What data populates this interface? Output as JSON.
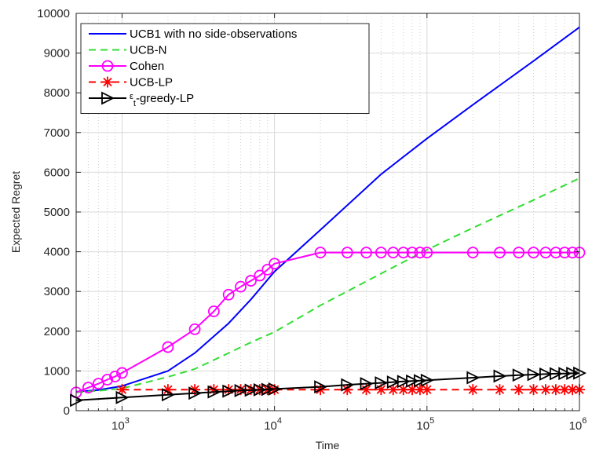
{
  "chart_data": {
    "type": "line",
    "xlabel": "Time",
    "ylabel": "Expected Regret",
    "x_scale": "log",
    "xlim": [
      500,
      1000000
    ],
    "ylim": [
      0,
      10000
    ],
    "grid": true,
    "legend_position": "top-left",
    "x_ticks": [
      {
        "value": 1000,
        "base": "10",
        "exp": "3"
      },
      {
        "value": 10000,
        "base": "10",
        "exp": "4"
      },
      {
        "value": 100000,
        "base": "10",
        "exp": "5"
      },
      {
        "value": 1000000,
        "base": "10",
        "exp": "6"
      }
    ],
    "y_ticks": [
      0,
      1000,
      2000,
      3000,
      4000,
      5000,
      6000,
      7000,
      8000,
      9000,
      10000
    ],
    "series": [
      {
        "name": "UCB1 with no side-observations",
        "legend": {
          "pre": "",
          "sym": "",
          "sub": "",
          "post": "UCB1 with no side-observations"
        },
        "color": "#0000ff",
        "dash": "",
        "marker": "none",
        "x": [
          500,
          700,
          1000,
          2000,
          3000,
          5000,
          7000,
          10000,
          20000,
          50000,
          100000,
          200000,
          500000,
          1000000
        ],
        "y": [
          480,
          520,
          620,
          1000,
          1450,
          2200,
          2800,
          3500,
          4550,
          5950,
          6850,
          7700,
          8800,
          9650
        ]
      },
      {
        "name": "UCB-N",
        "legend": {
          "pre": "",
          "sym": "",
          "sub": "",
          "post": "UCB-N"
        },
        "color": "#33dd33",
        "dash": "9,6",
        "marker": "none",
        "x": [
          500,
          700,
          1000,
          2000,
          3000,
          5000,
          7000,
          10000,
          20000,
          50000,
          100000,
          200000,
          500000,
          1000000
        ],
        "y": [
          460,
          500,
          560,
          850,
          1050,
          1450,
          1720,
          1980,
          2650,
          3450,
          4050,
          4600,
          5300,
          5850
        ]
      },
      {
        "name": "Cohen",
        "legend": {
          "pre": "",
          "sym": "",
          "sub": "",
          "post": "Cohen"
        },
        "color": "#ff00ff",
        "dash": "",
        "marker": "circle",
        "x": [
          500,
          600,
          700,
          800,
          900,
          1000,
          2000,
          3000,
          4000,
          5000,
          6000,
          7000,
          8000,
          9000,
          10000,
          20000,
          30000,
          40000,
          50000,
          60000,
          70000,
          80000,
          90000,
          100000,
          200000,
          300000,
          400000,
          500000,
          600000,
          700000,
          800000,
          900000,
          1000000
        ],
        "y": [
          460,
          580,
          680,
          780,
          860,
          950,
          1600,
          2050,
          2500,
          2920,
          3120,
          3270,
          3400,
          3550,
          3700,
          3980,
          3980,
          3980,
          3980,
          3980,
          3980,
          3980,
          3980,
          3980,
          3980,
          3980,
          3980,
          3980,
          3980,
          3980,
          3980,
          3980,
          3980
        ]
      },
      {
        "name": "UCB-LP",
        "legend": {
          "pre": "",
          "sym": "",
          "sub": "",
          "post": "UCB-LP"
        },
        "color": "#ff0000",
        "dash": "9,6",
        "marker": "asterisk",
        "x": [
          1000,
          2000,
          3000,
          4000,
          5000,
          6000,
          7000,
          8000,
          9000,
          10000,
          20000,
          30000,
          40000,
          50000,
          60000,
          70000,
          80000,
          90000,
          100000,
          200000,
          300000,
          400000,
          500000,
          600000,
          700000,
          800000,
          900000,
          1000000
        ],
        "y": [
          530,
          530,
          530,
          530,
          530,
          530,
          530,
          530,
          530,
          530,
          530,
          530,
          530,
          530,
          530,
          530,
          530,
          530,
          530,
          530,
          530,
          530,
          530,
          530,
          530,
          530,
          530,
          530
        ]
      },
      {
        "name": "ε_t-greedy-LP",
        "legend": {
          "pre": "",
          "sym": "ε",
          "sub": "t",
          "post": "-greedy-LP"
        },
        "color": "#000000",
        "dash": "",
        "marker": "triangle-right",
        "x": [
          500,
          1000,
          2000,
          3000,
          4000,
          5000,
          6000,
          7000,
          8000,
          9000,
          10000,
          20000,
          30000,
          40000,
          50000,
          60000,
          70000,
          80000,
          90000,
          100000,
          200000,
          300000,
          400000,
          500000,
          600000,
          700000,
          800000,
          900000,
          1000000
        ],
        "y": [
          260,
          330,
          400,
          440,
          470,
          490,
          505,
          515,
          525,
          535,
          545,
          600,
          650,
          680,
          700,
          720,
          735,
          745,
          755,
          765,
          830,
          870,
          895,
          910,
          920,
          930,
          935,
          940,
          945
        ]
      }
    ]
  }
}
